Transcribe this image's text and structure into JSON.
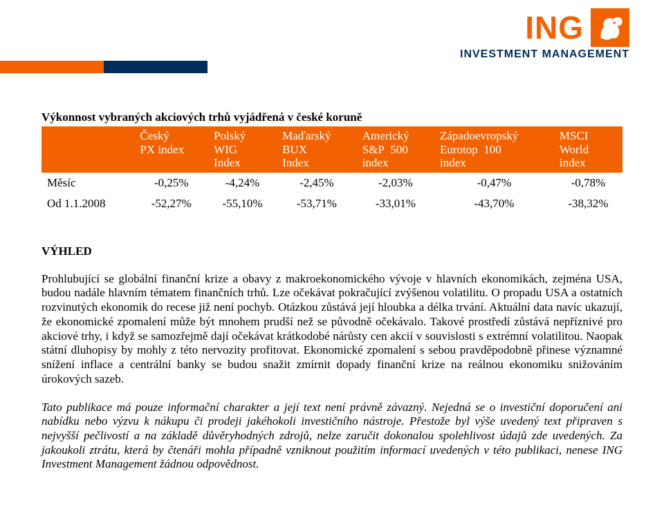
{
  "brand": {
    "name": "ING",
    "subtitle": "INVESTMENT MANAGEMENT",
    "orange": "#f26200",
    "blue": "#002c5a"
  },
  "table": {
    "title": "Výkonnost vybraných akciových trhů vyjádřená v české koruně",
    "columns": [
      "Český PX index",
      "Polský WIG Index",
      "Maďarský BUX Index",
      "Americký S&P 500 index",
      "Západoevropský Eurotop 100 index",
      "MSCI World index"
    ],
    "rows": [
      {
        "label": "Měsíc",
        "cells": [
          "-0,25%",
          "-4,24%",
          "-2,45%",
          "-2,03%",
          "-0,47%",
          "-0,78%"
        ]
      },
      {
        "label": "Od 1.1.2008",
        "cells": [
          "-52,27%",
          "-55,10%",
          "-53,71%",
          "-33,01%",
          "-43,70%",
          "-38,32%"
        ]
      }
    ]
  },
  "outlook": {
    "heading": "VÝHLED",
    "body": "Prohlubující se globální finanční krize a obavy z makroekonomického vývoje v hlavních ekonomikách, zejména USA, budou nadále hlavním tématem finančních trhů. Lze očekávat pokračující zvýšenou volatilitu. O propadu USA a ostatních rozvinutých ekonomik do recese již není pochyb. Otázkou zůstává její hloubka a délka trvání. Aktuální data navíc ukazují, že ekonomické zpomalení může být mnohem prudší než se původně očekávalo. Takové prostředí zůstává nepříznivé pro akciové trhy, i když se samozřejmě dají očekávat krátkodobé nárůsty cen akcií v souvislosti s extrémní volatilitou. Naopak státní dluhopisy by mohly z této nervozity profitovat. Ekonomické zpomalení s sebou pravděpodobně přinese významné snížení inflace a centrální banky se budou snažit zmírnit dopady finanční krize na reálnou ekonomiku snižováním úrokových sazeb."
  },
  "disclaimer": "Tato publikace má pouze informační charakter a její text není právně závazný. Nejedná se o investiční doporučení ani nabídku nebo výzvu k nákupu či prodeji jakéhokoli investičního nástroje. Přestože byl výše uvedený text připraven s nejvyšší pečlivostí a na základě důvěryhodných zdrojů, nelze zaručit dokonalou spolehlivost údajů zde uvedených. Za jakoukoli ztrátu, která by čtenáři mohla případně vzniknout použitím informací uvedených v této publikaci, nenese ING Investment Management žádnou odpovědnost."
}
